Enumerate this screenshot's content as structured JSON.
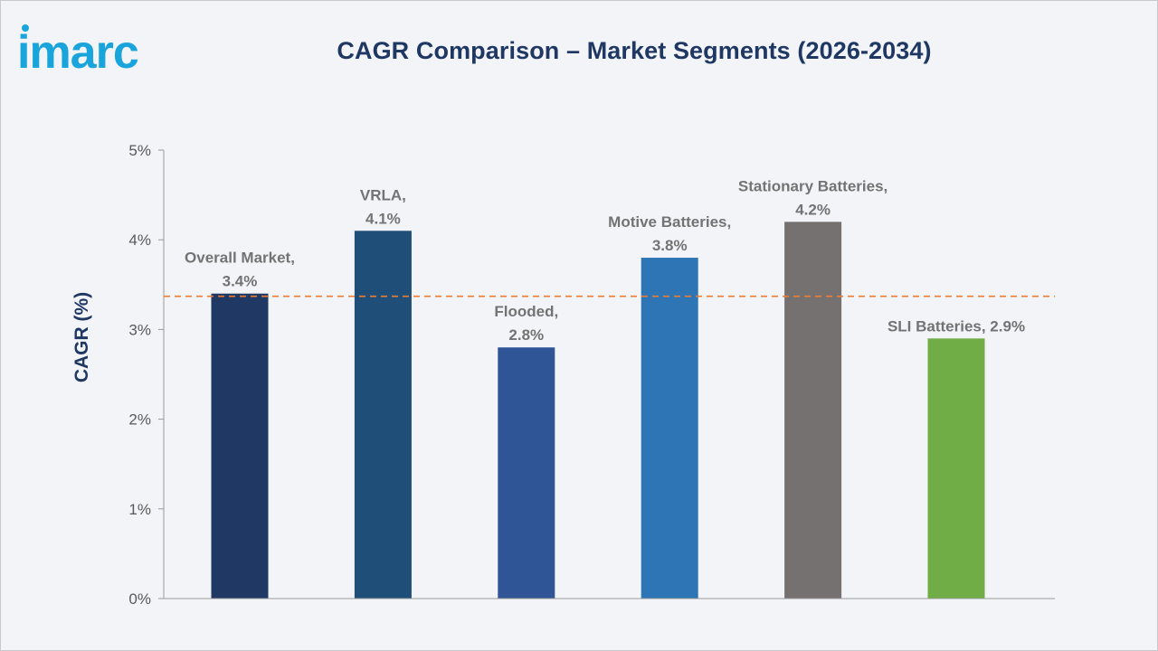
{
  "brand": {
    "logo_text": "imarc",
    "logo_color": "#1aa4dc"
  },
  "chart_data": {
    "type": "bar",
    "title": "CAGR Comparison – Market Segments (2026-2034)",
    "xlabel": "",
    "ylabel": "CAGR (%)",
    "ylim": [
      0,
      5
    ],
    "yticks": [
      "0%",
      "1%",
      "2%",
      "3%",
      "4%",
      "5%"
    ],
    "grid": false,
    "categories": [
      "Overall Market",
      "VRLA",
      "Flooded",
      "Motive Batteries",
      "Stationary Batteries",
      "SLI Batteries"
    ],
    "values": [
      3.4,
      4.1,
      2.8,
      3.8,
      4.2,
      2.9
    ],
    "data_labels": [
      [
        "Overall Market,",
        "3.4%"
      ],
      [
        "VRLA,",
        "4.1%"
      ],
      [
        "Flooded,",
        "2.8%"
      ],
      [
        "Motive Batteries,",
        "3.8%"
      ],
      [
        "Stationary Batteries,",
        "4.2%"
      ],
      [
        "SLI Batteries, 2.9%"
      ]
    ],
    "colors": [
      "#1f3864",
      "#1f4e79",
      "#2f5597",
      "#2e75b6",
      "#767171",
      "#70ad47"
    ],
    "reference_line": {
      "value": 3.37,
      "color": "#ed7d31",
      "style": "dashed"
    }
  }
}
